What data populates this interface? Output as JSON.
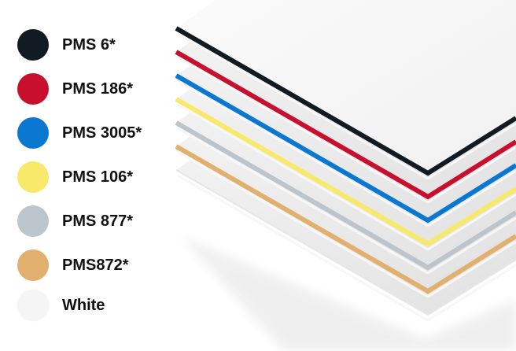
{
  "swatches": [
    {
      "label": "PMS 6*",
      "color": "#121a24"
    },
    {
      "label": "PMS 186*",
      "color": "#c8102e"
    },
    {
      "label": "PMS 3005*",
      "color": "#0a78d0"
    },
    {
      "label": "PMS 106*",
      "color": "#f9e96a"
    },
    {
      "label": "PMS 877*",
      "color": "#bcc4cc"
    },
    {
      "label": "PMS872*",
      "color": "#e2b06e"
    },
    {
      "label": "White",
      "color": "#f5f5f5"
    }
  ]
}
